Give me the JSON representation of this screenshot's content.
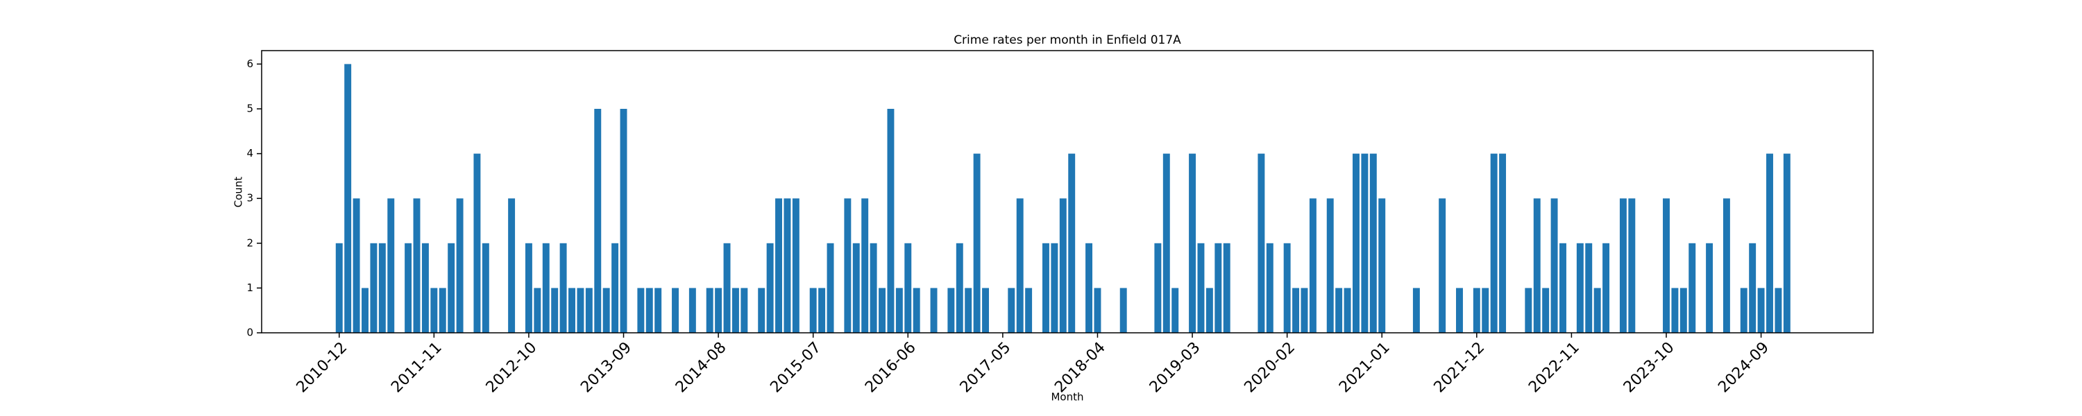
{
  "chart_data": {
    "type": "bar",
    "title": "Crime rates per month in Enfield 017A",
    "x_label": "Month",
    "y_label": "Count",
    "color": "#1f77b4",
    "x": [
      "2010-12",
      "2011-01",
      "2011-02",
      "2011-03",
      "2011-04",
      "2011-05",
      "2011-06",
      "2011-08",
      "2011-09",
      "2011-10",
      "2011-11",
      "2011-12",
      "2012-01",
      "2012-02",
      "2012-04",
      "2012-05",
      "2012-08",
      "2012-10",
      "2012-11",
      "2012-12",
      "2013-01",
      "2013-02",
      "2013-03",
      "2013-04",
      "2013-05",
      "2013-06",
      "2013-07",
      "2013-08",
      "2013-09",
      "2013-11",
      "2013-12",
      "2014-01",
      "2014-03",
      "2014-05",
      "2014-07",
      "2014-08",
      "2014-09",
      "2014-10",
      "2014-11",
      "2015-01",
      "2015-02",
      "2015-03",
      "2015-04",
      "2015-05",
      "2015-07",
      "2015-08",
      "2015-09",
      "2015-11",
      "2015-12",
      "2016-01",
      "2016-02",
      "2016-03",
      "2016-04",
      "2016-05",
      "2016-06",
      "2016-07",
      "2016-09",
      "2016-11",
      "2016-12",
      "2017-01",
      "2017-02",
      "2017-03",
      "2017-06",
      "2017-07",
      "2017-08",
      "2017-10",
      "2017-11",
      "2017-12",
      "2018-01",
      "2018-03",
      "2018-04",
      "2018-07",
      "2018-11",
      "2018-12",
      "2019-01",
      "2019-03",
      "2019-04",
      "2019-05",
      "2019-06",
      "2019-07",
      "2019-11",
      "2019-12",
      "2020-02",
      "2020-03",
      "2020-04",
      "2020-05",
      "2020-07",
      "2020-08",
      "2020-09",
      "2020-10",
      "2020-11",
      "2020-12",
      "2021-01",
      "2021-05",
      "2021-08",
      "2021-10",
      "2021-12",
      "2022-01",
      "2022-02",
      "2022-03",
      "2022-06",
      "2022-07",
      "2022-08",
      "2022-09",
      "2022-10",
      "2022-12",
      "2023-01",
      "2023-02",
      "2023-03",
      "2023-05",
      "2023-06",
      "2023-10",
      "2023-11",
      "2023-12",
      "2024-01",
      "2024-03",
      "2024-05",
      "2024-07",
      "2024-08",
      "2024-09",
      "2024-10",
      "2024-11",
      "2024-12"
    ],
    "values": [
      2,
      6,
      3,
      1,
      2,
      2,
      3,
      2,
      3,
      2,
      1,
      1,
      2,
      3,
      4,
      2,
      3,
      2,
      1,
      2,
      1,
      2,
      1,
      1,
      1,
      5,
      1,
      2,
      5,
      1,
      1,
      1,
      1,
      1,
      1,
      1,
      2,
      1,
      1,
      1,
      2,
      3,
      3,
      3,
      1,
      1,
      2,
      3,
      2,
      3,
      2,
      1,
      5,
      1,
      2,
      1,
      1,
      1,
      2,
      1,
      4,
      1,
      1,
      3,
      1,
      2,
      2,
      3,
      4,
      2,
      1,
      1,
      2,
      4,
      1,
      4,
      2,
      1,
      2,
      2,
      4,
      2,
      2,
      1,
      1,
      3,
      3,
      1,
      1,
      4,
      4,
      4,
      3,
      1,
      3,
      1,
      1,
      1,
      4,
      4,
      1,
      3,
      1,
      3,
      2,
      2,
      2,
      1,
      2,
      3,
      3,
      3,
      1,
      1,
      2,
      2,
      3,
      1,
      2,
      1,
      4,
      1,
      4
    ],
    "xlim": [
      "2010-03",
      "2025-10"
    ],
    "xticks": [
      "2010-12",
      "2011-11",
      "2012-10",
      "2013-09",
      "2014-08",
      "2015-07",
      "2016-06",
      "2017-05",
      "2018-04",
      "2019-03",
      "2020-02",
      "2021-01",
      "2021-12",
      "2022-11",
      "2023-10",
      "2024-09"
    ],
    "ylim": [
      0,
      6.3
    ],
    "yticks": [
      0,
      1,
      2,
      3,
      4,
      5,
      6
    ]
  }
}
